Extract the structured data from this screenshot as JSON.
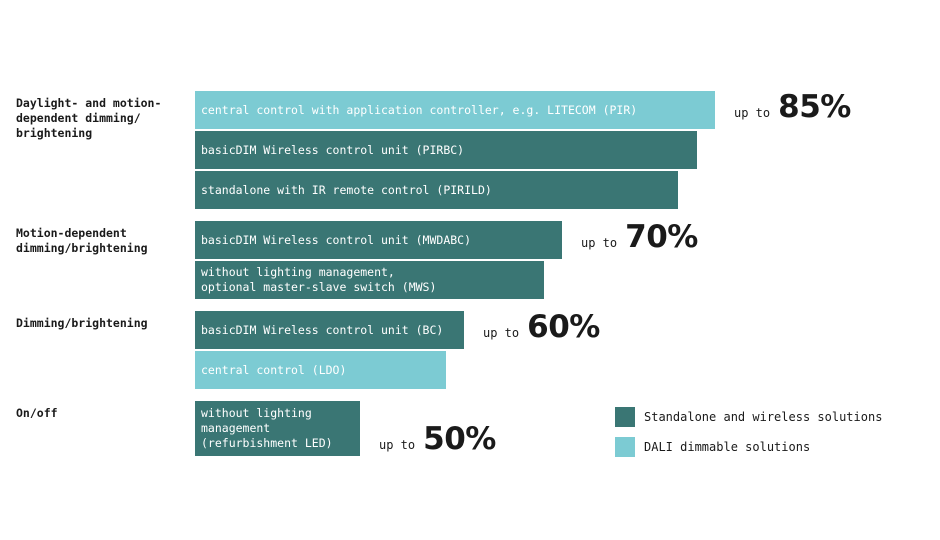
{
  "chart_data": {
    "type": "bar",
    "orientation": "horizontal",
    "colors": {
      "standalone": "#3a7674",
      "dali": "#7ccbd3"
    },
    "groups": [
      {
        "label": "Daylight- and motion-\ndependent dimming/\nbrightening",
        "savings_prefix": "up to",
        "savings_value": "85%",
        "bars": [
          {
            "label": "central control with application controller, e.g. LITECOM (PIR)",
            "series": "DALI dimmable solutions",
            "value": 85
          },
          {
            "label": "basicDIM Wireless control unit (PIRBC)",
            "series": "Standalone and wireless solutions",
            "value": 82
          },
          {
            "label": "standalone with IR remote control (PIRILD)",
            "series": "Standalone and wireless solutions",
            "value": 79
          }
        ]
      },
      {
        "label": "Motion-dependent\ndimming/brightening",
        "savings_prefix": "up to",
        "savings_value": "70%",
        "bars": [
          {
            "label": "basicDIM Wireless control unit (MWDABC)",
            "series": "Standalone and wireless solutions",
            "value": 60
          },
          {
            "label": "without lighting management,\noptional master-slave switch (MWS)",
            "series": "Standalone and wireless solutions",
            "value": 57
          }
        ]
      },
      {
        "label": "Dimming/brightening",
        "savings_prefix": "up to",
        "savings_value": "60%",
        "bars": [
          {
            "label": "basicDIM Wireless control unit (BC)",
            "series": "Standalone and wireless solutions",
            "value": 44
          },
          {
            "label": "central control (LDO)",
            "series": "DALI dimmable solutions",
            "value": 41
          }
        ]
      },
      {
        "label": "On/off",
        "savings_prefix": "up to",
        "savings_value": "50%",
        "bars": [
          {
            "label": "without lighting\nmanagement\n(refurbishment LED)",
            "series": "Standalone and wireless solutions",
            "value": 27
          }
        ]
      }
    ],
    "legend": [
      {
        "label": "Standalone and wireless solutions",
        "color": "#3a7674"
      },
      {
        "label": "DALI dimmable solutions",
        "color": "#7ccbd3"
      }
    ],
    "legend_placement": "bottom-right"
  }
}
